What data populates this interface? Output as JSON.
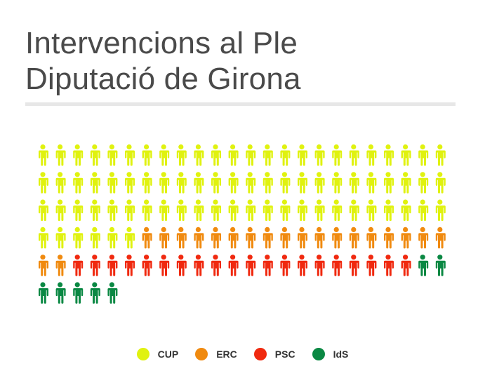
{
  "title": {
    "line1": "Intervencions al Ple",
    "line2": "Diputació de Girona"
  },
  "chart_data": {
    "type": "pictogram",
    "series": [
      {
        "name": "CUP",
        "value": 78,
        "color": "#e0f20f"
      },
      {
        "name": "ERC",
        "value": 20,
        "color": "#f08a0f"
      },
      {
        "name": "PSC",
        "value": 20,
        "color": "#f0290f"
      },
      {
        "name": "IdS",
        "value": 7,
        "color": "#0a8843"
      }
    ],
    "icon": "person-icon",
    "per_row": 24,
    "grid": false,
    "legend": "bottom-center"
  }
}
